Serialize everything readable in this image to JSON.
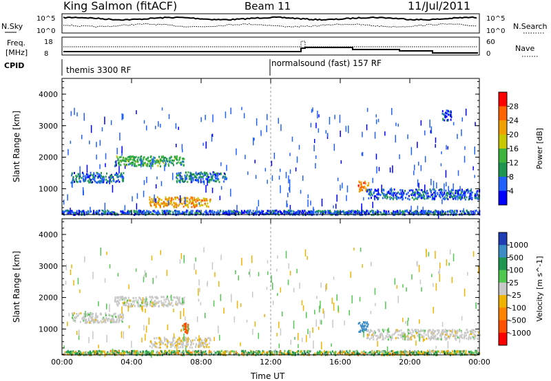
{
  "header": {
    "title": "King Salmon (fitACF)",
    "beam": "Beam 11",
    "date": "11/Jul/2011"
  },
  "top_strip": {
    "nsky_label": "N.Sky",
    "nsearch_label": "N.Search",
    "nsky_ticks": [
      "10^5",
      "10^0"
    ],
    "nsearch_ticks": [
      "10^5",
      "10^0"
    ],
    "freq_label_1": "Freq.",
    "freq_label_2": "[MHz]",
    "freq_ticks": [
      "18",
      "8"
    ],
    "nave_label": "Nave",
    "nave_ticks": [
      "60",
      "0"
    ],
    "cpid_label": "CPID",
    "cpid_segments": [
      "themis 3300 RF",
      "normalsound (fast) 157 RF"
    ],
    "cpid_change_time": "12:00"
  },
  "chart_data": [
    {
      "type": "heatmap",
      "title": "",
      "xlabel": "Time UT",
      "ylabel": "Slant Range [km]",
      "xlim": [
        0,
        24
      ],
      "ylim": [
        180,
        4500
      ],
      "x_ticks": [
        "00:00",
        "04:00",
        "08:00",
        "12:00",
        "16:00",
        "20:00",
        "00:00"
      ],
      "y_ticks": [
        "1000",
        "2000",
        "3000",
        "4000"
      ],
      "colorbar": {
        "label": "Power [dB]",
        "ticks": [
          "4",
          "8",
          "12",
          "16",
          "20",
          "24",
          "28"
        ],
        "colors": [
          "#0000ff",
          "#2060ff",
          "#1e9650",
          "#3cb43c",
          "#c8c800",
          "#f0a000",
          "#ff6400",
          "#ff0000"
        ]
      },
      "features": [
        {
          "t_start": 0.0,
          "t_end": 24.0,
          "range_km": 250,
          "value": 6
        },
        {
          "t_start": 0.5,
          "t_end": 3.5,
          "range_km": 1380,
          "value": 7
        },
        {
          "t_start": 3.0,
          "t_end": 7.0,
          "range_km": 1900,
          "value": 12
        },
        {
          "t_start": 5.0,
          "t_end": 8.5,
          "range_km": 600,
          "value": 22
        },
        {
          "t_start": 6.5,
          "t_end": 9.5,
          "range_km": 1400,
          "value": 8
        },
        {
          "t_start": 17.0,
          "t_end": 17.6,
          "range_km": 1100,
          "value": 24
        },
        {
          "t_start": 17.5,
          "t_end": 24.0,
          "range_km": 850,
          "value": 6
        },
        {
          "t_start": 21.8,
          "t_end": 22.4,
          "range_km": 3350,
          "value": 5
        }
      ]
    },
    {
      "type": "heatmap",
      "title": "",
      "xlabel": "Time UT",
      "ylabel": "Slant Range [km]",
      "xlim": [
        0,
        24
      ],
      "ylim": [
        180,
        4500
      ],
      "x_ticks": [
        "00:00",
        "04:00",
        "08:00",
        "12:00",
        "16:00",
        "20:00",
        "00:00"
      ],
      "y_ticks": [
        "1000",
        "2000",
        "3000",
        "4000"
      ],
      "colorbar": {
        "label": "Velocity [m s^-1]",
        "ticks": [
          "1000",
          "500",
          "100",
          "25",
          "-25",
          "-100",
          "-500",
          "-1000"
        ],
        "colors": [
          "#1e3cb4",
          "#3c8cc8",
          "#1e9650",
          "#50c850",
          "#c8c8c8",
          "#f0b400",
          "#ff8200",
          "#ff5000",
          "#ff0000"
        ]
      },
      "features": [
        {
          "t_start": 0.0,
          "t_end": 24.0,
          "range_km": 250,
          "value": 50
        },
        {
          "t_start": 0.5,
          "t_end": 3.5,
          "range_km": 1380,
          "value": 0
        },
        {
          "t_start": 3.0,
          "t_end": 7.0,
          "range_km": 1900,
          "value": 0
        },
        {
          "t_start": 5.0,
          "t_end": 8.5,
          "range_km": 600,
          "value": -10
        },
        {
          "t_start": 6.8,
          "t_end": 7.3,
          "range_km": 1050,
          "value": -700
        },
        {
          "t_start": 17.0,
          "t_end": 17.6,
          "range_km": 1100,
          "value": 700
        },
        {
          "t_start": 17.5,
          "t_end": 24.0,
          "range_km": 850,
          "value": 0
        }
      ]
    }
  ],
  "colors": {
    "frame": "#000000",
    "dotted": "#000000"
  }
}
